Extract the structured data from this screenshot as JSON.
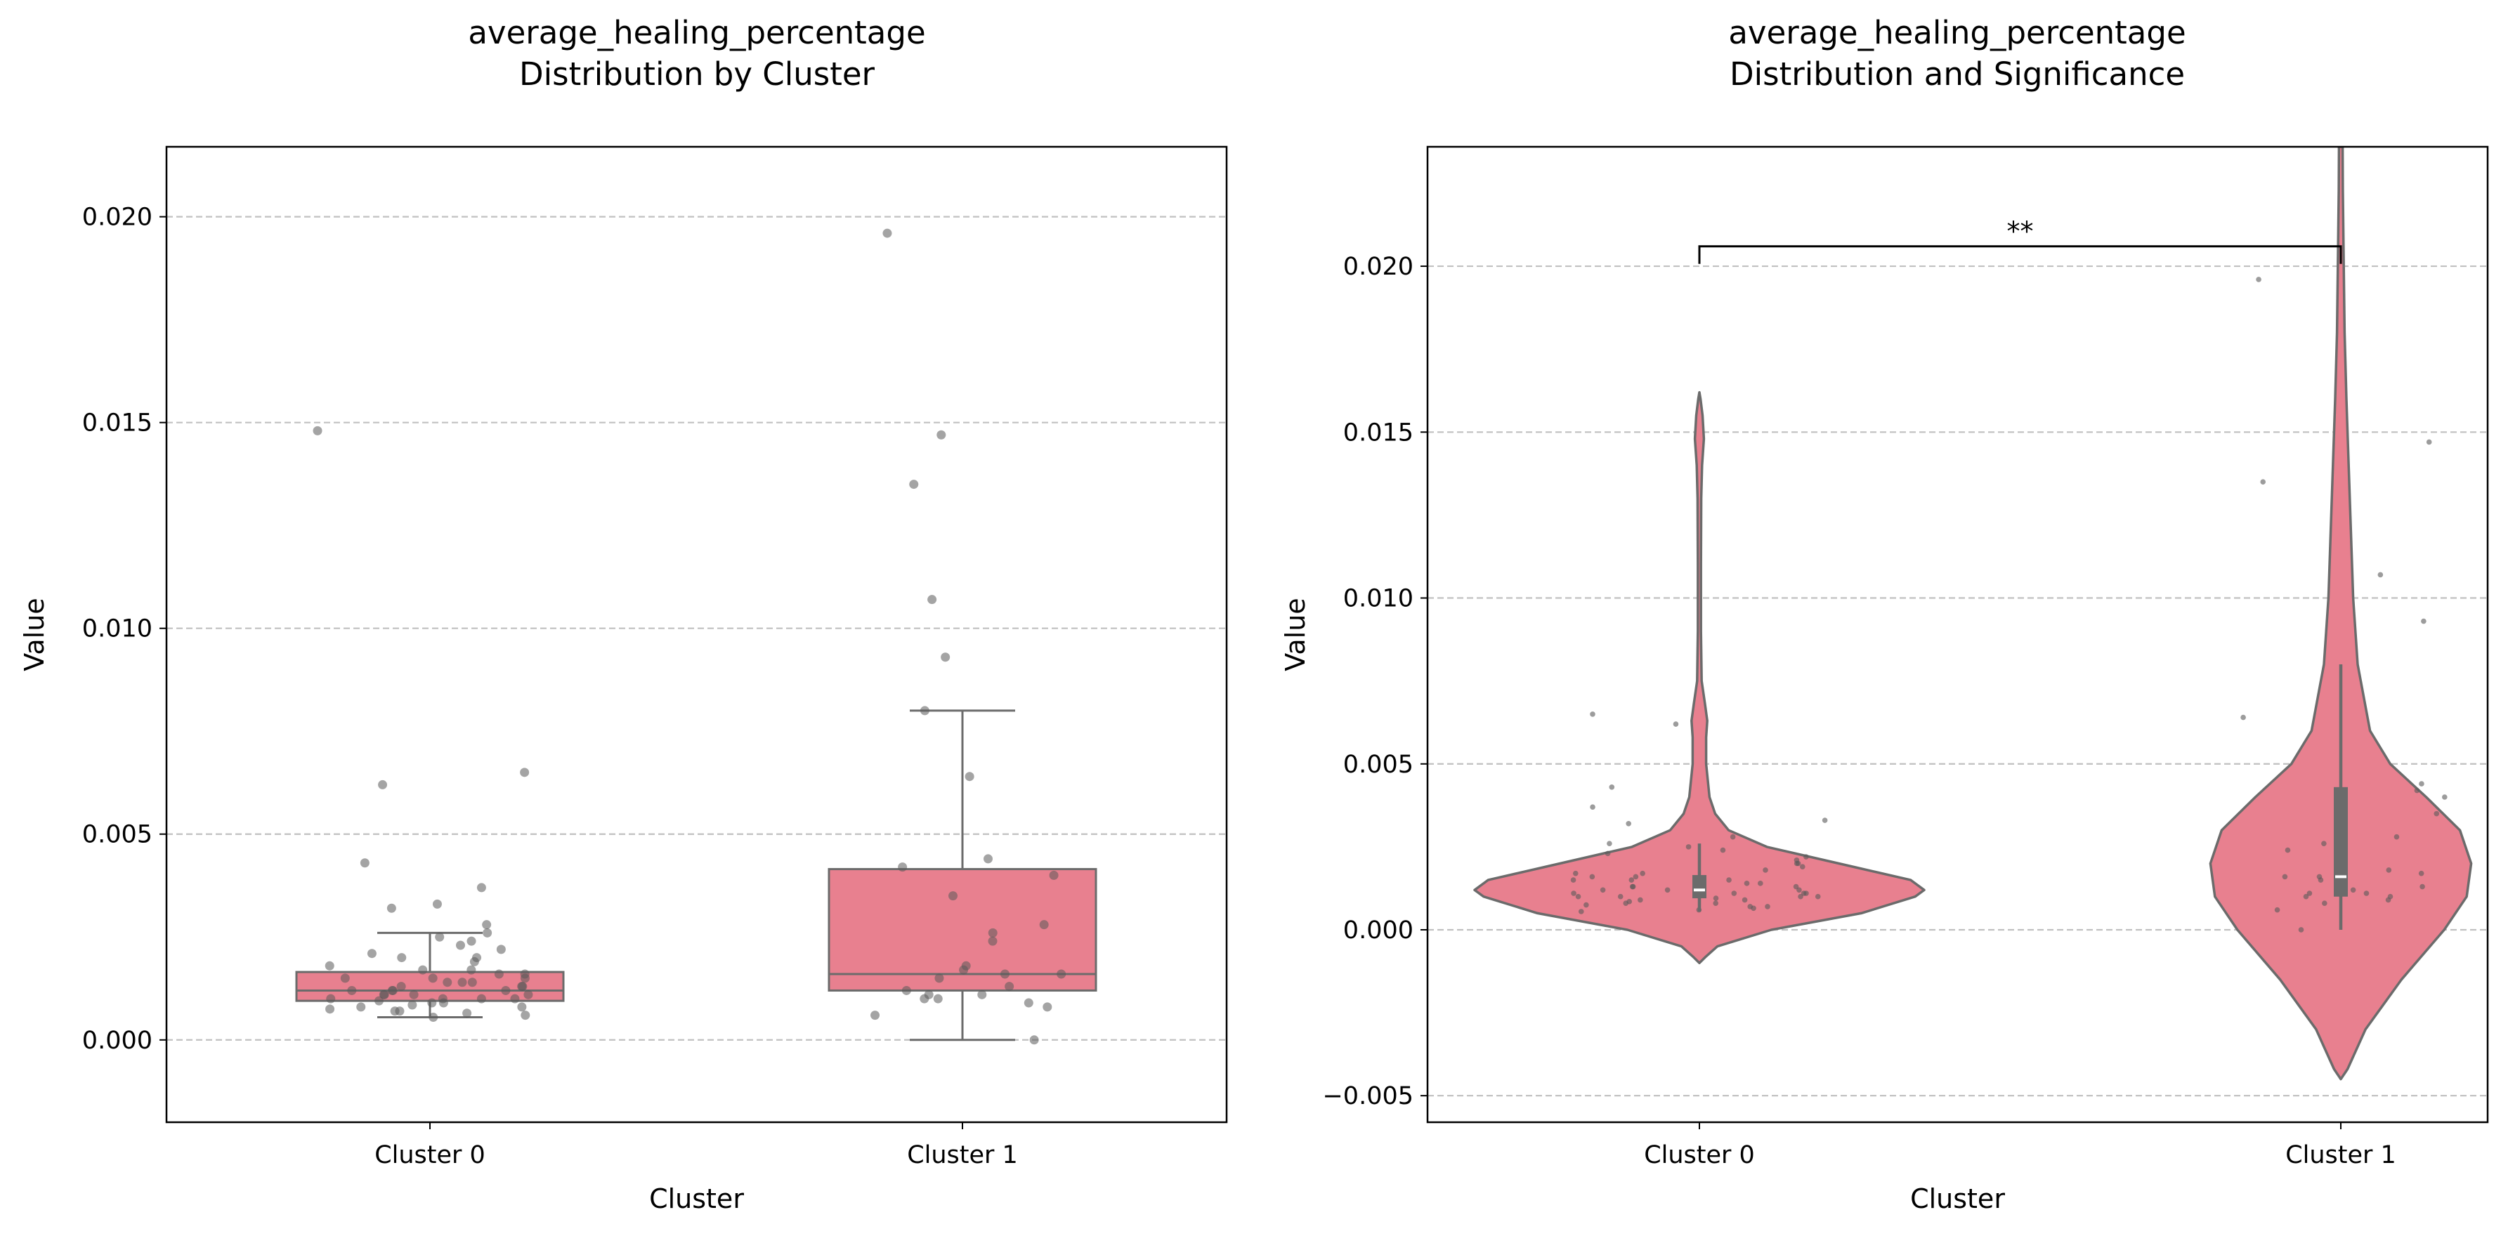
{
  "colors": {
    "fill": "#e8808f",
    "edge": "#6b6b6b",
    "points": "#5a5a5a",
    "grid": "#c0c0c0",
    "axes": "#000000"
  },
  "chart_data": [
    {
      "type": "box",
      "title": [
        "average_healing_percentage",
        "Distribution by Cluster"
      ],
      "xlabel": "Cluster",
      "ylabel": "Value",
      "categories": [
        "Cluster 0",
        "Cluster 1"
      ],
      "ylim": [
        -0.002,
        0.0217
      ],
      "yticks": [
        0.0,
        0.005,
        0.01,
        0.015,
        0.02
      ],
      "ytick_labels": [
        "0.000",
        "0.005",
        "0.010",
        "0.015",
        "0.020"
      ],
      "grid": "y-dashed",
      "boxes": [
        {
          "whislo": 0.00055,
          "q1": 0.00095,
          "med": 0.0012,
          "q3": 0.00165,
          "whishi": 0.0026
        },
        {
          "whislo": 0.0,
          "q1": 0.0012,
          "med": 0.0016,
          "q3": 0.00415,
          "whishi": 0.008
        }
      ],
      "points": [
        [
          0.0148,
          0.0065,
          0.0062,
          0.0043,
          0.0037,
          0.0033,
          0.0032,
          0.0028,
          0.0026,
          0.0025,
          0.0024,
          0.0023,
          0.0022,
          0.0021,
          0.002,
          0.002,
          0.0019,
          0.0018,
          0.0017,
          0.0017,
          0.0016,
          0.0016,
          0.0015,
          0.0015,
          0.0015,
          0.0014,
          0.0014,
          0.0014,
          0.0013,
          0.0013,
          0.0013,
          0.0012,
          0.0012,
          0.0012,
          0.0012,
          0.0011,
          0.0011,
          0.0011,
          0.0011,
          0.001,
          0.001,
          0.001,
          0.001,
          0.00095,
          0.0009,
          0.0009,
          0.00085,
          0.0008,
          0.0008,
          0.00075,
          0.0007,
          0.0007,
          0.00065,
          0.0006,
          0.00055
        ],
        [
          0.0196,
          0.0147,
          0.0135,
          0.0107,
          0.0093,
          0.008,
          0.0064,
          0.0044,
          0.0042,
          0.004,
          0.0035,
          0.0028,
          0.0026,
          0.0024,
          0.0018,
          0.0017,
          0.0016,
          0.0016,
          0.0015,
          0.0013,
          0.0012,
          0.0011,
          0.0011,
          0.001,
          0.001,
          0.0009,
          0.0008,
          0.0006,
          0.0
        ]
      ]
    },
    {
      "type": "violin",
      "title": [
        "average_healing_percentage",
        "Distribution and Significance"
      ],
      "xlabel": "Cluster",
      "ylabel": "Value",
      "categories": [
        "Cluster 0",
        "Cluster 1"
      ],
      "ylim": [
        -0.0058,
        0.0236
      ],
      "yticks": [
        -0.005,
        0.0,
        0.005,
        0.01,
        0.015,
        0.02
      ],
      "ytick_labels": [
        "−0.005",
        "0.000",
        "0.005",
        "0.010",
        "0.015",
        "0.020"
      ],
      "grid": "y-dashed",
      "significance": {
        "label": "**",
        "y": 0.0206,
        "between": [
          "Cluster 0",
          "Cluster 1"
        ]
      },
      "violins": [
        {
          "profile": [
            [
              -0.001,
              0.0
            ],
            [
              -0.0008,
              0.03
            ],
            [
              -0.0005,
              0.08
            ],
            [
              0.0,
              0.32
            ],
            [
              0.0005,
              0.72
            ],
            [
              0.001,
              0.96
            ],
            [
              0.0012,
              1.0
            ],
            [
              0.0015,
              0.94
            ],
            [
              0.002,
              0.62
            ],
            [
              0.0025,
              0.3
            ],
            [
              0.003,
              0.13
            ],
            [
              0.0035,
              0.07
            ],
            [
              0.004,
              0.045
            ],
            [
              0.005,
              0.03
            ],
            [
              0.0058,
              0.03
            ],
            [
              0.0063,
              0.035
            ],
            [
              0.0068,
              0.025
            ],
            [
              0.0075,
              0.01
            ],
            [
              0.009,
              0.007
            ],
            [
              0.011,
              0.007
            ],
            [
              0.013,
              0.008
            ],
            [
              0.014,
              0.012
            ],
            [
              0.0148,
              0.02
            ],
            [
              0.0155,
              0.014
            ],
            [
              0.016,
              0.005
            ],
            [
              0.0162,
              0.0
            ]
          ],
          "box": {
            "whislo": 0.00055,
            "q1": 0.00095,
            "med": 0.0012,
            "q3": 0.00165,
            "whishi": 0.0026
          }
        },
        {
          "profile": [
            [
              -0.0045,
              0.0
            ],
            [
              -0.0042,
              0.03
            ],
            [
              -0.003,
              0.11
            ],
            [
              -0.0015,
              0.27
            ],
            [
              0.0,
              0.46
            ],
            [
              0.001,
              0.56
            ],
            [
              0.002,
              0.58
            ],
            [
              0.003,
              0.53
            ],
            [
              0.004,
              0.38
            ],
            [
              0.005,
              0.22
            ],
            [
              0.006,
              0.13
            ],
            [
              0.008,
              0.075
            ],
            [
              0.01,
              0.055
            ],
            [
              0.012,
              0.045
            ],
            [
              0.014,
              0.035
            ],
            [
              0.016,
              0.025
            ],
            [
              0.018,
              0.017
            ],
            [
              0.02,
              0.013
            ],
            [
              0.0223,
              0.009
            ],
            [
              0.0236,
              0.008
            ]
          ],
          "box": {
            "whislo": 0.0,
            "q1": 0.001,
            "med": 0.0016,
            "q3": 0.0043,
            "whishi": 0.008
          }
        }
      ],
      "points": [
        [
          0.0065,
          0.0062,
          0.0043,
          0.0037,
          0.0033,
          0.0032,
          0.0028,
          0.0026,
          0.0025,
          0.0024,
          0.0023,
          0.0022,
          0.0021,
          0.002,
          0.002,
          0.0019,
          0.0018,
          0.0017,
          0.0017,
          0.0016,
          0.0016,
          0.0015,
          0.0015,
          0.0015,
          0.0014,
          0.0014,
          0.0014,
          0.0013,
          0.0013,
          0.0013,
          0.0012,
          0.0012,
          0.0012,
          0.0012,
          0.0011,
          0.0011,
          0.0011,
          0.0011,
          0.001,
          0.001,
          0.001,
          0.001,
          0.00095,
          0.0009,
          0.0009,
          0.00085,
          0.0008,
          0.0008,
          0.00075,
          0.0007,
          0.0007,
          0.00065,
          0.0006,
          0.00055
        ],
        [
          0.0196,
          0.0147,
          0.0135,
          0.0107,
          0.0093,
          0.0064,
          0.0044,
          0.0042,
          0.004,
          0.0035,
          0.0028,
          0.0026,
          0.0024,
          0.0018,
          0.0017,
          0.0016,
          0.0016,
          0.0015,
          0.0013,
          0.0012,
          0.0011,
          0.0011,
          0.001,
          0.001,
          0.0009,
          0.0008,
          0.0006,
          0.0
        ]
      ]
    }
  ]
}
